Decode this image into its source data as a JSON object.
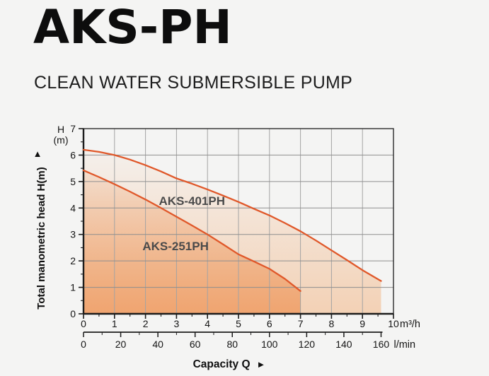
{
  "page": {
    "background": "#f4f4f3"
  },
  "header": {
    "title": "AKS-PH",
    "subtitle": "CLEAN WATER SUBMERSIBLE PUMP"
  },
  "chart_data": {
    "type": "line",
    "xlabel": "Capacity Q",
    "ylabel": "Total manometric head H(m)",
    "head_unit_label": [
      "H",
      "(m)"
    ],
    "x_axis_primary": {
      "unit": "m³/h",
      "min": 0,
      "max": 10,
      "major_step": 1,
      "minor_step": 0.5,
      "tick_labels": [
        "0",
        "1",
        "2",
        "3",
        "4",
        "5",
        "6",
        "7",
        "8",
        "9",
        "10"
      ]
    },
    "x_axis_secondary": {
      "unit": "l/min",
      "min": 0,
      "max": 160,
      "major_step": 20,
      "minor_step": 10,
      "to_primary_factor": 0.06,
      "tick_labels": [
        "0",
        "20",
        "40",
        "60",
        "80",
        "100",
        "120",
        "140",
        "160"
      ]
    },
    "y_axis": {
      "min": 0,
      "max": 7,
      "major_step": 1,
      "minor_step": 0.5,
      "tick_labels": [
        "0",
        "1",
        "2",
        "3",
        "4",
        "5",
        "6",
        "7"
      ]
    },
    "grid": true,
    "curve_color": "#e0582a",
    "fill": {
      "base_color": "#f3d1b5",
      "overlay_color": "#ee9355",
      "overlay_opacity": 0.72
    },
    "series": [
      {
        "name": "AKS-401PH",
        "points": [
          [
            0,
            6.2
          ],
          [
            0.5,
            6.12
          ],
          [
            1,
            6.0
          ],
          [
            1.5,
            5.83
          ],
          [
            2,
            5.62
          ],
          [
            2.5,
            5.38
          ],
          [
            3,
            5.12
          ],
          [
            3.5,
            4.92
          ],
          [
            4,
            4.7
          ],
          [
            4.5,
            4.47
          ],
          [
            5,
            4.23
          ],
          [
            5.5,
            3.97
          ],
          [
            6,
            3.72
          ],
          [
            6.5,
            3.43
          ],
          [
            7,
            3.12
          ],
          [
            7.5,
            2.77
          ],
          [
            8,
            2.4
          ],
          [
            8.5,
            2.03
          ],
          [
            9,
            1.65
          ],
          [
            9.6,
            1.24
          ]
        ],
        "label_pos": [
          3.5,
          4.28
        ]
      },
      {
        "name": "AKS-251PH",
        "points": [
          [
            0,
            5.42
          ],
          [
            0.5,
            5.17
          ],
          [
            1,
            4.9
          ],
          [
            1.5,
            4.62
          ],
          [
            2,
            4.32
          ],
          [
            2.5,
            4.0
          ],
          [
            3,
            3.67
          ],
          [
            3.5,
            3.34
          ],
          [
            4,
            3.0
          ],
          [
            4.5,
            2.63
          ],
          [
            5,
            2.25
          ],
          [
            5.5,
            1.98
          ],
          [
            6,
            1.7
          ],
          [
            6.5,
            1.32
          ],
          [
            7,
            0.86
          ]
        ],
        "label_pos": [
          2.97,
          2.57
        ]
      }
    ]
  },
  "icons": {
    "up_arrow": "▲",
    "right_arrow": "►"
  }
}
